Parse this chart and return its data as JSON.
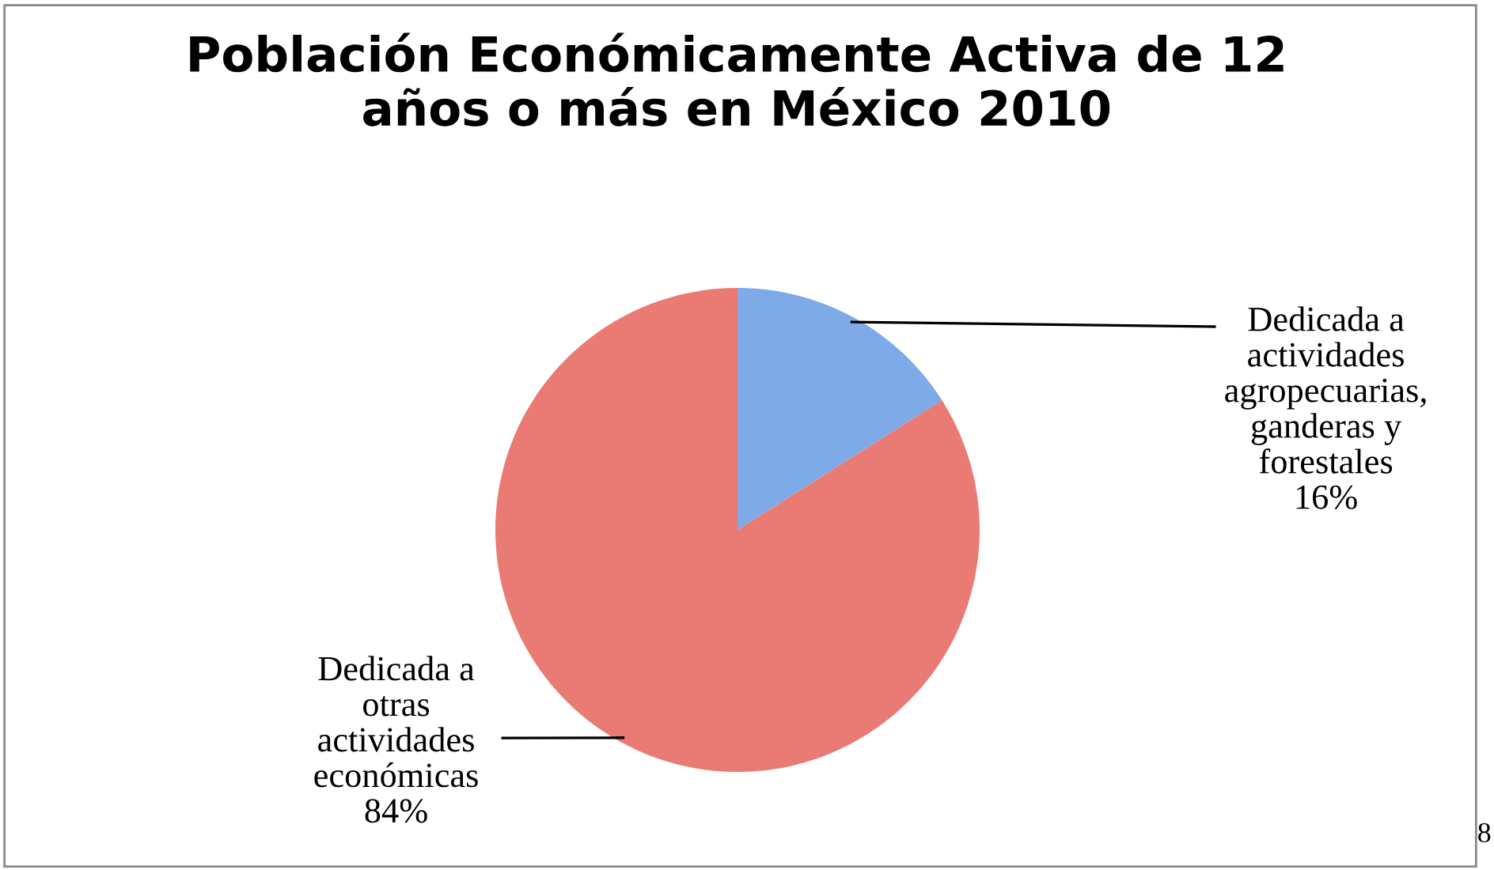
{
  "chart_data": {
    "type": "pie",
    "title": "Población Económicamente Activa de 12\naños o más en México 2010",
    "categories": [
      "Dedicada a\nactividades\nagropecuarias,\nganderas y\nforestales",
      "Dedicada a\notras\nactividades\neconómicas"
    ],
    "values": [
      16,
      84
    ],
    "value_labels": [
      "16%",
      "84%"
    ],
    "colors": [
      "#7eaae8",
      "#ea7b74"
    ],
    "annotations": [
      "8"
    ]
  }
}
